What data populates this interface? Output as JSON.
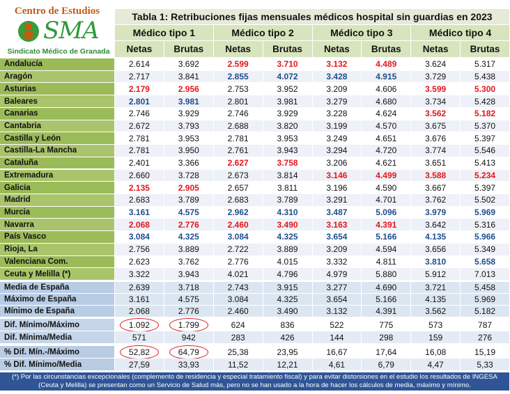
{
  "logo": {
    "title": "Centro de Estudios",
    "brand": "SMA",
    "subtitle": "Sindicato Médico de Granada"
  },
  "table": {
    "title": "Tabla 1: Retribuciones fijas mensuales médicos hospital sin guardias en 2023",
    "groups": [
      "Médico tipo 1",
      "Médico tipo 2",
      "Médico tipo 3",
      "Médico tipo 4"
    ],
    "columns": [
      "Netas",
      "Brutas",
      "Netas",
      "Brutas",
      "Netas",
      "Brutas",
      "Netas",
      "Brutas"
    ],
    "rows": [
      {
        "label": "Andalucía",
        "values": [
          "2.614",
          "3.692",
          "2.599",
          "3.710",
          "3.132",
          "4.489",
          "3.624",
          "5.317"
        ],
        "red": [
          2,
          3,
          4,
          5
        ]
      },
      {
        "label": "Aragón",
        "values": [
          "2.717",
          "3.841",
          "2.855",
          "4.072",
          "3.428",
          "4.915",
          "3.729",
          "5.438"
        ],
        "blue": [
          2,
          3,
          4,
          5
        ]
      },
      {
        "label": "Asturias",
        "values": [
          "2.179",
          "2.956",
          "2.753",
          "3.952",
          "3.209",
          "4.606",
          "3.599",
          "5.300"
        ],
        "red": [
          0,
          1,
          6,
          7
        ]
      },
      {
        "label": "Baleares",
        "values": [
          "2.801",
          "3.981",
          "2.801",
          "3.981",
          "3.279",
          "4.680",
          "3.734",
          "5.428"
        ],
        "blue": [
          0,
          1
        ]
      },
      {
        "label": "Canarias",
        "values": [
          "2.746",
          "3.929",
          "2.746",
          "3.929",
          "3.228",
          "4.624",
          "3.562",
          "5.182"
        ],
        "red": [
          6,
          7
        ]
      },
      {
        "label": "Cantabria",
        "values": [
          "2.672",
          "3.793",
          "2.688",
          "3.820",
          "3.199",
          "4.570",
          "3.675",
          "5.370"
        ]
      },
      {
        "label": "Castilla y León",
        "values": [
          "2.781",
          "3.953",
          "2.781",
          "3.953",
          "3.249",
          "4.651",
          "3.676",
          "5.397"
        ]
      },
      {
        "label": "Castilla-La Mancha",
        "values": [
          "2.781",
          "3.950",
          "2.761",
          "3.943",
          "3.294",
          "4.720",
          "3.774",
          "5.546"
        ]
      },
      {
        "label": "Cataluña",
        "values": [
          "2.401",
          "3.366",
          "2.627",
          "3.758",
          "3.206",
          "4.621",
          "3.651",
          "5.413"
        ],
        "red": [
          2,
          3
        ]
      },
      {
        "label": "Extremadura",
        "values": [
          "2.660",
          "3.728",
          "2.673",
          "3.814",
          "3.146",
          "4.499",
          "3.588",
          "5.234"
        ],
        "red": [
          4,
          5,
          6,
          7
        ]
      },
      {
        "label": "Galicia",
        "values": [
          "2.135",
          "2.905",
          "2.657",
          "3.811",
          "3.196",
          "4.590",
          "3.667",
          "5.397"
        ],
        "red": [
          0,
          1
        ]
      },
      {
        "label": "Madrid",
        "values": [
          "2.683",
          "3.789",
          "2.683",
          "3.789",
          "3.291",
          "4.701",
          "3.762",
          "5.502"
        ]
      },
      {
        "label": "Murcia",
        "values": [
          "3.161",
          "4.575",
          "2.962",
          "4.310",
          "3.487",
          "5.096",
          "3.979",
          "5.969"
        ],
        "blue": [
          0,
          1,
          2,
          3,
          4,
          5,
          6,
          7
        ]
      },
      {
        "label": "Navarra",
        "values": [
          "2.068",
          "2.776",
          "2.460",
          "3.490",
          "3.163",
          "4.391",
          "3.642",
          "5.316"
        ],
        "red": [
          0,
          1,
          2,
          3,
          4,
          5
        ]
      },
      {
        "label": "País Vasco",
        "values": [
          "3.084",
          "4.325",
          "3.084",
          "4.325",
          "3.654",
          "5.166",
          "4.135",
          "5.966"
        ],
        "blue": [
          0,
          1,
          2,
          3,
          4,
          5,
          6,
          7
        ]
      },
      {
        "label": "Rioja, La",
        "values": [
          "2.756",
          "3.889",
          "2.722",
          "3.889",
          "3.209",
          "4.594",
          "3.656",
          "5.349"
        ]
      },
      {
        "label": "Valenciana Com.",
        "values": [
          "2.623",
          "3.762",
          "2.776",
          "4.015",
          "3.332",
          "4.811",
          "3.810",
          "5.658"
        ],
        "blue": [
          6,
          7
        ]
      },
      {
        "label": "Ceuta y Melilla (*)",
        "values": [
          "3.322",
          "3.943",
          "4.021",
          "4.796",
          "4.979",
          "5.880",
          "5.912",
          "7.013"
        ]
      }
    ],
    "summary": [
      {
        "label": "Media de España",
        "values": [
          "2.639",
          "3.718",
          "2.743",
          "3.915",
          "3.277",
          "4.690",
          "3.721",
          "5.458"
        ]
      },
      {
        "label": "Máximo de España",
        "values": [
          "3.161",
          "4.575",
          "3.084",
          "4.325",
          "3.654",
          "5.166",
          "4.135",
          "5.969"
        ]
      },
      {
        "label": "Mínimo de España",
        "values": [
          "2.068",
          "2.776",
          "2.460",
          "3.490",
          "3.132",
          "4.391",
          "3.562",
          "5.182"
        ]
      }
    ],
    "differences": [
      {
        "label": "Dif. Mínimo/Máximo",
        "values": [
          "1.092",
          "1.799",
          "624",
          "836",
          "522",
          "775",
          "573",
          "787"
        ],
        "circled": [
          0,
          1
        ]
      },
      {
        "label": "Dif. Mínima/Media",
        "values": [
          "571",
          "942",
          "283",
          "426",
          "144",
          "298",
          "159",
          "276"
        ]
      }
    ],
    "percentages": [
      {
        "label": "% Dif. Mín.-/Máximo",
        "values": [
          "52,82",
          "64,79",
          "25,38",
          "23,95",
          "16,67",
          "17,64",
          "16,08",
          "15,19"
        ],
        "circled": [
          0,
          1
        ]
      },
      {
        "label": "% Dif. Mínimo/Media",
        "values": [
          "27,59",
          "33,93",
          "11,52",
          "12,21",
          "4,61",
          "6,79",
          "4,47",
          "5,33"
        ]
      }
    ],
    "footnote": "(*) Por las circunstancias excepcionales (complemento de residencia y especial tratamiento fiscal) y para evitar distorsiones en el estudio los resultados de INGESA (Ceuta y Melilla) se presentan como un Servicio de Salud más, pero no se han usado a la hora de hacer los cálculos de media, máximo y mínimo."
  }
}
